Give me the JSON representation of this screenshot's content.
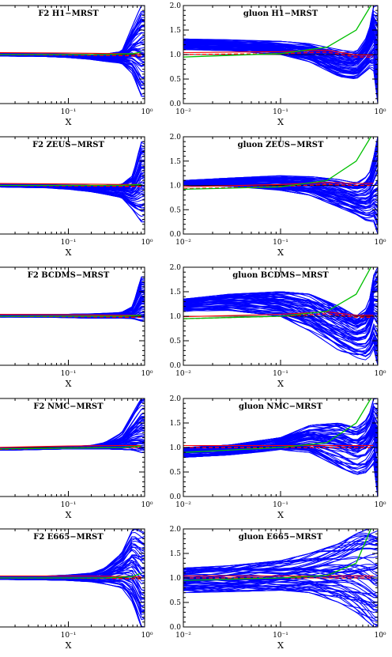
{
  "chart_data": [
    {
      "type": "line",
      "title": "F2 H1−MRST",
      "xlabel": "X",
      "ylabel": "",
      "x_scale": "log",
      "x_ticks": [
        {
          "value": 0.1,
          "label": "10⁻¹"
        },
        {
          "value": 1,
          "label": "10⁰"
        }
      ],
      "ylim": [
        0,
        2
      ],
      "reference_line": 1.0,
      "series": [
        {
          "color": "#0000ff",
          "envelope": {
            "x": [
              0.01,
              0.05,
              0.1,
              0.2,
              0.3,
              0.5,
              0.7,
              0.9
            ],
            "y_low": [
              0.97,
              0.96,
              0.94,
              0.9,
              0.86,
              0.82,
              0.6,
              0.15
            ],
            "y_high": [
              1.03,
              1.02,
              1.01,
              1.0,
              1.01,
              1.06,
              1.6,
              2.0
            ]
          }
        },
        {
          "color": "#ff0000",
          "points": [
            [
              0.01,
              1.0
            ],
            [
              0.1,
              0.99
            ],
            [
              0.5,
              0.98
            ],
            [
              0.9,
              0.97
            ]
          ]
        },
        {
          "color": "#00c000",
          "points": [
            [
              0.01,
              1.0
            ],
            [
              0.3,
              1.0
            ],
            [
              0.7,
              1.02
            ],
            [
              0.9,
              1.05
            ]
          ]
        }
      ]
    },
    {
      "type": "line",
      "title": "gluon H1−MRST",
      "xlabel": "X",
      "ylabel": "",
      "x_scale": "log",
      "x_ticks": [
        {
          "value": 0.01,
          "label": "10⁻²"
        },
        {
          "value": 0.1,
          "label": "10⁻¹"
        },
        {
          "value": 1,
          "label": "10⁰"
        }
      ],
      "ylim": [
        0,
        2
      ],
      "y_ticks": [
        "0.0",
        "0.5",
        "1.0",
        "1.5",
        "2.0"
      ],
      "reference_line": 1.0,
      "series": [
        {
          "color": "#0000ff",
          "envelope": {
            "x": [
              0.01,
              0.03,
              0.1,
              0.2,
              0.4,
              0.6,
              0.8,
              0.9,
              0.95
            ],
            "y_low": [
              1.1,
              1.08,
              1.0,
              0.85,
              0.55,
              0.5,
              0.7,
              0.8,
              0.0
            ],
            "y_high": [
              1.32,
              1.3,
              1.27,
              1.22,
              1.1,
              1.05,
              1.4,
              2.0,
              2.0
            ]
          }
        },
        {
          "color": "#ff0000",
          "points": [
            [
              0.01,
              1.0
            ],
            [
              0.1,
              1.02
            ],
            [
              0.3,
              1.05
            ],
            [
              0.6,
              0.95
            ],
            [
              0.9,
              0.95
            ]
          ]
        },
        {
          "color": "#00c000",
          "points": [
            [
              0.01,
              0.95
            ],
            [
              0.1,
              1.02
            ],
            [
              0.3,
              1.15
            ],
            [
              0.6,
              1.5
            ],
            [
              0.85,
              2.0
            ]
          ]
        }
      ]
    },
    {
      "type": "line",
      "title": "F2 ZEUS−MRST",
      "xlabel": "X",
      "ylabel": "",
      "x_scale": "log",
      "x_ticks": [
        {
          "value": 0.1,
          "label": "10⁻¹"
        },
        {
          "value": 1,
          "label": "10⁰"
        }
      ],
      "ylim": [
        0,
        2
      ],
      "reference_line": 1.0,
      "series": [
        {
          "color": "#0000ff",
          "envelope": {
            "x": [
              0.01,
              0.05,
              0.1,
              0.2,
              0.3,
              0.5,
              0.7,
              0.9
            ],
            "y_low": [
              0.97,
              0.95,
              0.92,
              0.87,
              0.82,
              0.75,
              0.5,
              0.25
            ],
            "y_high": [
              1.03,
              1.02,
              1.01,
              1.0,
              1.0,
              1.02,
              1.2,
              1.9
            ]
          }
        },
        {
          "color": "#ff0000",
          "points": [
            [
              0.01,
              1.0
            ],
            [
              0.1,
              0.99
            ],
            [
              0.5,
              0.98
            ],
            [
              0.9,
              0.98
            ]
          ]
        },
        {
          "color": "#00c000",
          "points": [
            [
              0.01,
              1.0
            ],
            [
              0.5,
              1.0
            ],
            [
              0.9,
              1.02
            ]
          ]
        }
      ]
    },
    {
      "type": "line",
      "title": "gluon ZEUS−MRST",
      "xlabel": "X",
      "ylabel": "",
      "x_scale": "log",
      "x_ticks": [
        {
          "value": 0.01,
          "label": "10⁻²"
        },
        {
          "value": 0.1,
          "label": "10⁻¹"
        },
        {
          "value": 1,
          "label": "10⁰"
        }
      ],
      "ylim": [
        0,
        2
      ],
      "y_ticks": [
        "0.0",
        "0.5",
        "1.0",
        "1.5",
        "2.0"
      ],
      "reference_line": 1.0,
      "series": [
        {
          "color": "#0000ff",
          "envelope": {
            "x": [
              0.01,
              0.03,
              0.1,
              0.2,
              0.4,
              0.6,
              0.8,
              0.9,
              0.95
            ],
            "y_low": [
              1.0,
              0.98,
              0.9,
              0.8,
              0.55,
              0.4,
              0.25,
              0.3,
              0.0
            ],
            "y_high": [
              1.1,
              1.15,
              1.2,
              1.18,
              1.12,
              1.05,
              1.2,
              1.5,
              2.0
            ]
          }
        },
        {
          "color": "#ff0000",
          "points": [
            [
              0.01,
              0.93
            ],
            [
              0.1,
              0.98
            ],
            [
              0.3,
              1.02
            ],
            [
              0.6,
              1.0
            ],
            [
              0.9,
              1.0
            ]
          ]
        },
        {
          "color": "#00c000",
          "points": [
            [
              0.01,
              0.92
            ],
            [
              0.1,
              0.97
            ],
            [
              0.3,
              1.1
            ],
            [
              0.6,
              1.5
            ],
            [
              0.85,
              2.0
            ]
          ]
        }
      ]
    },
    {
      "type": "line",
      "title": "F2 BCDMS−MRST",
      "xlabel": "X",
      "ylabel": "",
      "x_scale": "log",
      "x_ticks": [
        {
          "value": 0.1,
          "label": "10⁻¹"
        },
        {
          "value": 1,
          "label": "10⁰"
        }
      ],
      "ylim": [
        0,
        2
      ],
      "reference_line": 1.0,
      "series": [
        {
          "color": "#0000ff",
          "envelope": {
            "x": [
              0.01,
              0.05,
              0.1,
              0.2,
              0.3,
              0.5,
              0.7,
              0.9
            ],
            "y_low": [
              0.98,
              0.98,
              0.97,
              0.96,
              0.96,
              0.96,
              0.95,
              0.9
            ],
            "y_high": [
              1.03,
              1.04,
              1.04,
              1.05,
              1.06,
              1.08,
              1.2,
              1.8
            ]
          }
        },
        {
          "color": "#ff0000",
          "points": [
            [
              0.01,
              1.0
            ],
            [
              0.1,
              0.99
            ],
            [
              0.5,
              0.98
            ],
            [
              0.9,
              0.98
            ]
          ]
        },
        {
          "color": "#00c000",
          "points": [
            [
              0.01,
              1.0
            ],
            [
              0.5,
              1.0
            ],
            [
              0.9,
              1.02
            ]
          ]
        }
      ]
    },
    {
      "type": "line",
      "title": "gluon BCDMS−MRST",
      "xlabel": "X",
      "ylabel": "",
      "x_scale": "log",
      "x_ticks": [
        {
          "value": 0.01,
          "label": "10⁻²"
        },
        {
          "value": 0.1,
          "label": "10⁻¹"
        },
        {
          "value": 1,
          "label": "10⁰"
        }
      ],
      "ylim": [
        0,
        2
      ],
      "y_ticks": [
        "0.0",
        "0.5",
        "1.0",
        "1.5",
        "2.0"
      ],
      "reference_line": 1.0,
      "series": [
        {
          "color": "#0000ff",
          "envelope": {
            "x": [
              0.01,
              0.03,
              0.1,
              0.2,
              0.4,
              0.6,
              0.8,
              0.9,
              0.95
            ],
            "y_low": [
              1.1,
              1.12,
              1.0,
              0.7,
              0.3,
              0.15,
              0.1,
              0.4,
              0.0
            ],
            "y_high": [
              1.35,
              1.45,
              1.5,
              1.45,
              1.2,
              1.0,
              1.2,
              1.8,
              2.0
            ]
          }
        },
        {
          "color": "#ff0000",
          "points": [
            [
              0.01,
              0.95
            ],
            [
              0.1,
              1.0
            ],
            [
              0.3,
              1.05
            ],
            [
              0.6,
              0.98
            ],
            [
              0.9,
              0.98
            ]
          ]
        },
        {
          "color": "#00c000",
          "points": [
            [
              0.01,
              0.95
            ],
            [
              0.1,
              1.0
            ],
            [
              0.3,
              1.1
            ],
            [
              0.6,
              1.45
            ],
            [
              0.85,
              2.0
            ]
          ]
        }
      ]
    },
    {
      "type": "line",
      "title": "F2 NMC−MRST",
      "xlabel": "X",
      "ylabel": "",
      "x_scale": "log",
      "x_ticks": [
        {
          "value": 0.1,
          "label": "10⁻¹"
        },
        {
          "value": 1,
          "label": "10⁰"
        }
      ],
      "ylim": [
        0,
        2
      ],
      "reference_line": 1.0,
      "series": [
        {
          "color": "#0000ff",
          "envelope": {
            "x": [
              0.01,
              0.05,
              0.1,
              0.2,
              0.3,
              0.5,
              0.7,
              0.9
            ],
            "y_low": [
              0.94,
              0.96,
              0.97,
              0.97,
              0.97,
              0.96,
              0.95,
              0.9
            ],
            "y_high": [
              0.99,
              1.01,
              1.03,
              1.05,
              1.1,
              1.3,
              1.7,
              2.0
            ]
          }
        },
        {
          "color": "#ff0000",
          "points": [
            [
              0.01,
              0.96
            ],
            [
              0.1,
              0.99
            ],
            [
              0.5,
              1.0
            ],
            [
              0.9,
              1.0
            ]
          ]
        },
        {
          "color": "#00c000",
          "points": [
            [
              0.01,
              0.97
            ],
            [
              0.5,
              1.0
            ],
            [
              0.9,
              1.03
            ]
          ]
        }
      ]
    },
    {
      "type": "line",
      "title": "gluon NMC−MRST",
      "xlabel": "X",
      "ylabel": "",
      "x_scale": "log",
      "x_ticks": [
        {
          "value": 0.01,
          "label": "10⁻²"
        },
        {
          "value": 0.1,
          "label": "10⁻¹"
        },
        {
          "value": 1,
          "label": "10⁰"
        }
      ],
      "ylim": [
        0,
        2
      ],
      "y_ticks": [
        "0.0",
        "0.5",
        "1.0",
        "1.5",
        "2.0"
      ],
      "reference_line": 1.0,
      "series": [
        {
          "color": "#0000ff",
          "envelope": {
            "x": [
              0.01,
              0.03,
              0.1,
              0.2,
              0.4,
              0.6,
              0.8,
              0.9,
              0.95
            ],
            "y_low": [
              0.8,
              0.85,
              0.95,
              0.9,
              0.6,
              0.45,
              0.5,
              0.8,
              0.0
            ],
            "y_high": [
              1.0,
              1.05,
              1.2,
              1.45,
              1.5,
              1.4,
              1.6,
              2.0,
              2.0
            ]
          }
        },
        {
          "color": "#ff0000",
          "points": [
            [
              0.01,
              1.0
            ],
            [
              0.1,
              1.0
            ],
            [
              0.3,
              1.0
            ],
            [
              0.6,
              1.0
            ],
            [
              0.9,
              1.0
            ]
          ]
        },
        {
          "color": "#00c000",
          "points": [
            [
              0.01,
              0.9
            ],
            [
              0.1,
              1.0
            ],
            [
              0.3,
              1.1
            ],
            [
              0.6,
              1.5
            ],
            [
              0.85,
              2.0
            ]
          ]
        }
      ]
    },
    {
      "type": "line",
      "title": "F2 E665−MRST",
      "xlabel": "X",
      "ylabel": "",
      "x_scale": "log",
      "x_ticks": [
        {
          "value": 0.1,
          "label": "10⁻¹"
        },
        {
          "value": 1,
          "label": "10⁰"
        }
      ],
      "ylim": [
        0,
        2
      ],
      "reference_line": 1.0,
      "series": [
        {
          "color": "#0000ff",
          "envelope": {
            "x": [
              0.01,
              0.05,
              0.1,
              0.2,
              0.3,
              0.5,
              0.7,
              0.9
            ],
            "y_low": [
              0.97,
              0.96,
              0.95,
              0.92,
              0.88,
              0.8,
              0.5,
              0.0
            ],
            "y_high": [
              1.02,
              1.04,
              1.06,
              1.1,
              1.2,
              1.5,
              2.0,
              2.0
            ]
          }
        },
        {
          "color": "#ff0000",
          "points": [
            [
              0.01,
              1.0
            ],
            [
              0.1,
              1.0
            ],
            [
              0.5,
              0.99
            ],
            [
              0.9,
              0.98
            ]
          ]
        },
        {
          "color": "#00c000",
          "points": [
            [
              0.01,
              1.0
            ],
            [
              0.3,
              1.0
            ],
            [
              0.7,
              1.03
            ],
            [
              0.9,
              1.1
            ]
          ]
        }
      ]
    },
    {
      "type": "line",
      "title": "gluon E665−MRST",
      "xlabel": "X",
      "ylabel": "",
      "x_scale": "log",
      "x_ticks": [
        {
          "value": 0.01,
          "label": "10⁻²"
        },
        {
          "value": 0.1,
          "label": "10⁻¹"
        },
        {
          "value": 1,
          "label": "10⁰"
        }
      ],
      "ylim": [
        0,
        2
      ],
      "y_ticks": [
        "0.0",
        "0.5",
        "1.0",
        "1.5",
        "2.0"
      ],
      "reference_line": 1.0,
      "series": [
        {
          "color": "#0000ff",
          "envelope": {
            "x": [
              0.01,
              0.03,
              0.1,
              0.2,
              0.4,
              0.6,
              0.8,
              0.9,
              0.95
            ],
            "y_low": [
              0.7,
              0.72,
              0.75,
              0.7,
              0.5,
              0.3,
              0.1,
              0.0,
              0.0
            ],
            "y_high": [
              1.2,
              1.25,
              1.35,
              1.5,
              1.7,
              1.9,
              2.0,
              2.0,
              2.0
            ]
          }
        },
        {
          "color": "#ff0000",
          "points": [
            [
              0.01,
              1.0
            ],
            [
              0.1,
              1.0
            ],
            [
              0.3,
              1.0
            ],
            [
              0.6,
              1.0
            ],
            [
              0.9,
              1.0
            ]
          ]
        },
        {
          "color": "#00c000",
          "points": [
            [
              0.01,
              0.95
            ],
            [
              0.1,
              1.0
            ],
            [
              0.3,
              1.05
            ],
            [
              0.6,
              1.3
            ],
            [
              0.85,
              2.0
            ]
          ]
        }
      ]
    }
  ]
}
